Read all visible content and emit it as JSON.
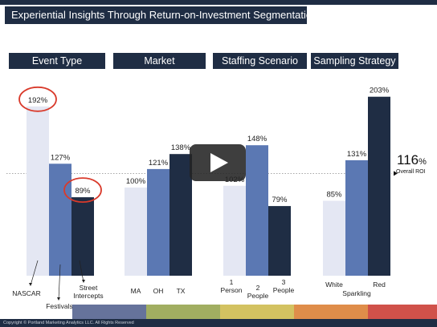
{
  "page": {
    "title": "Experiential Insights Through Return-on-Investment Segmentations",
    "footer": "Copyright © Portland Marketing Analytics LLC. All Rights Reserved",
    "overall_roi_value": "116",
    "overall_roi_unit": "%",
    "overall_roi_label": "Overall ROI"
  },
  "headers": [
    "Event Type",
    "Market",
    "Staffing Scenario",
    "Sampling Strategy"
  ],
  "colors": {
    "light": "#e4e7f3",
    "mid": "#5b78b3",
    "dark": "#1f2d44",
    "highlight": "#d93a2b"
  },
  "chart_data": {
    "type": "bar",
    "ylabel": "",
    "reference_line": {
      "value": 116,
      "label": "Overall ROI"
    },
    "groups": [
      {
        "header": "Event Type",
        "categories": [
          "NASCAR",
          "Festivals",
          "Street Intercepts"
        ],
        "values": [
          192,
          127,
          89
        ],
        "value_labels": [
          "192%",
          "127%",
          "89%"
        ],
        "circled": [
          true,
          false,
          true
        ]
      },
      {
        "header": "Market",
        "categories": [
          "MA",
          "OH",
          "TX"
        ],
        "values": [
          100,
          121,
          138
        ],
        "value_labels": [
          "100%",
          "121%",
          "138%"
        ]
      },
      {
        "header": "Staffing Scenario",
        "categories": [
          "1 Person",
          "2 People",
          "3 People"
        ],
        "values": [
          102,
          148,
          79
        ],
        "value_labels": [
          "102%",
          "148%",
          "79%"
        ]
      },
      {
        "header": "Sampling Strategy",
        "categories": [
          "White",
          "Sparkling",
          "Red"
        ],
        "values": [
          85,
          131,
          203
        ],
        "value_labels": [
          "85%",
          "131%",
          "203%"
        ]
      }
    ]
  },
  "player": {
    "icon": "play-icon"
  }
}
